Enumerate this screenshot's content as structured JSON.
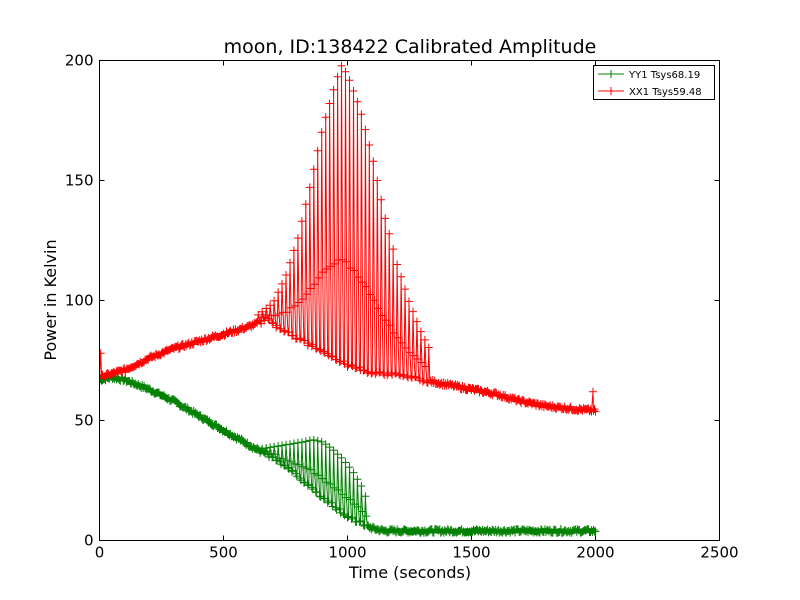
{
  "chart_data": {
    "type": "line",
    "title": "moon, ID:138422 Calibrated Amplitude",
    "xlabel": "Time (seconds)",
    "ylabel": "Power in Kelvin",
    "xlim": [
      0,
      2500
    ],
    "ylim": [
      0,
      200
    ],
    "xticks": [
      "0",
      "500",
      "1000",
      "1500",
      "2000",
      "2500"
    ],
    "yticks": [
      "0",
      "50",
      "100",
      "150",
      "200"
    ],
    "xtick_values": [
      0,
      500,
      1000,
      1500,
      2000,
      2500
    ],
    "ytick_values": [
      0,
      50,
      100,
      150,
      200
    ],
    "grid": false,
    "legend_position": "top-right",
    "marker": "+",
    "series": [
      {
        "name": "YY1 Tsys68.19",
        "color": "#008000",
        "baseline": {
          "x": [
            0,
            50,
            100,
            200,
            300,
            400,
            500,
            600,
            700,
            800,
            900,
            1000,
            1100,
            1150,
            1200,
            1300,
            1500,
            1700,
            2000
          ],
          "y": [
            67,
            68,
            67,
            63,
            58,
            52,
            46,
            40,
            34,
            27,
            18,
            10,
            5,
            4,
            4,
            4,
            4,
            4,
            4
          ]
        },
        "spike_range": [
          640,
          1080
        ],
        "spike_peaks": {
          "x": [
            640,
            700,
            760,
            820,
            860,
            900,
            940,
            980,
            1020,
            1060,
            1080
          ],
          "y": [
            38,
            39,
            40,
            41,
            42,
            41,
            38,
            34,
            29,
            22,
            16
          ]
        },
        "spike_period": 16,
        "x_end": 2000
      },
      {
        "name": "XX1 Tsys59.48",
        "color": "#ff0000",
        "baseline": {
          "x": [
            0,
            100,
            200,
            300,
            400,
            500,
            600,
            650,
            680,
            700,
            800,
            900,
            1000,
            1100,
            1200,
            1300,
            1400,
            1500,
            1600,
            1700,
            1800,
            1900,
            2000
          ],
          "y": [
            68,
            71,
            76,
            80,
            83,
            86,
            89,
            91,
            93,
            90,
            84,
            79,
            73,
            70,
            69,
            67,
            65,
            63,
            61,
            58,
            56,
            55,
            54
          ]
        },
        "spike_range": [
          640,
          1330
        ],
        "spike_peaks": {
          "x": [
            640,
            700,
            750,
            800,
            850,
            900,
            950,
            975,
            1000,
            1050,
            1100,
            1150,
            1200,
            1250,
            1300,
            1330
          ],
          "y": [
            94,
            99,
            110,
            126,
            148,
            172,
            190,
            198,
            194,
            180,
            160,
            135,
            115,
            99,
            86,
            80
          ]
        },
        "spike_period": 16,
        "outliers": [
          {
            "x": 5,
            "y": 78
          },
          {
            "x": 1990,
            "y": 62
          }
        ],
        "x_end": 2000
      }
    ]
  }
}
